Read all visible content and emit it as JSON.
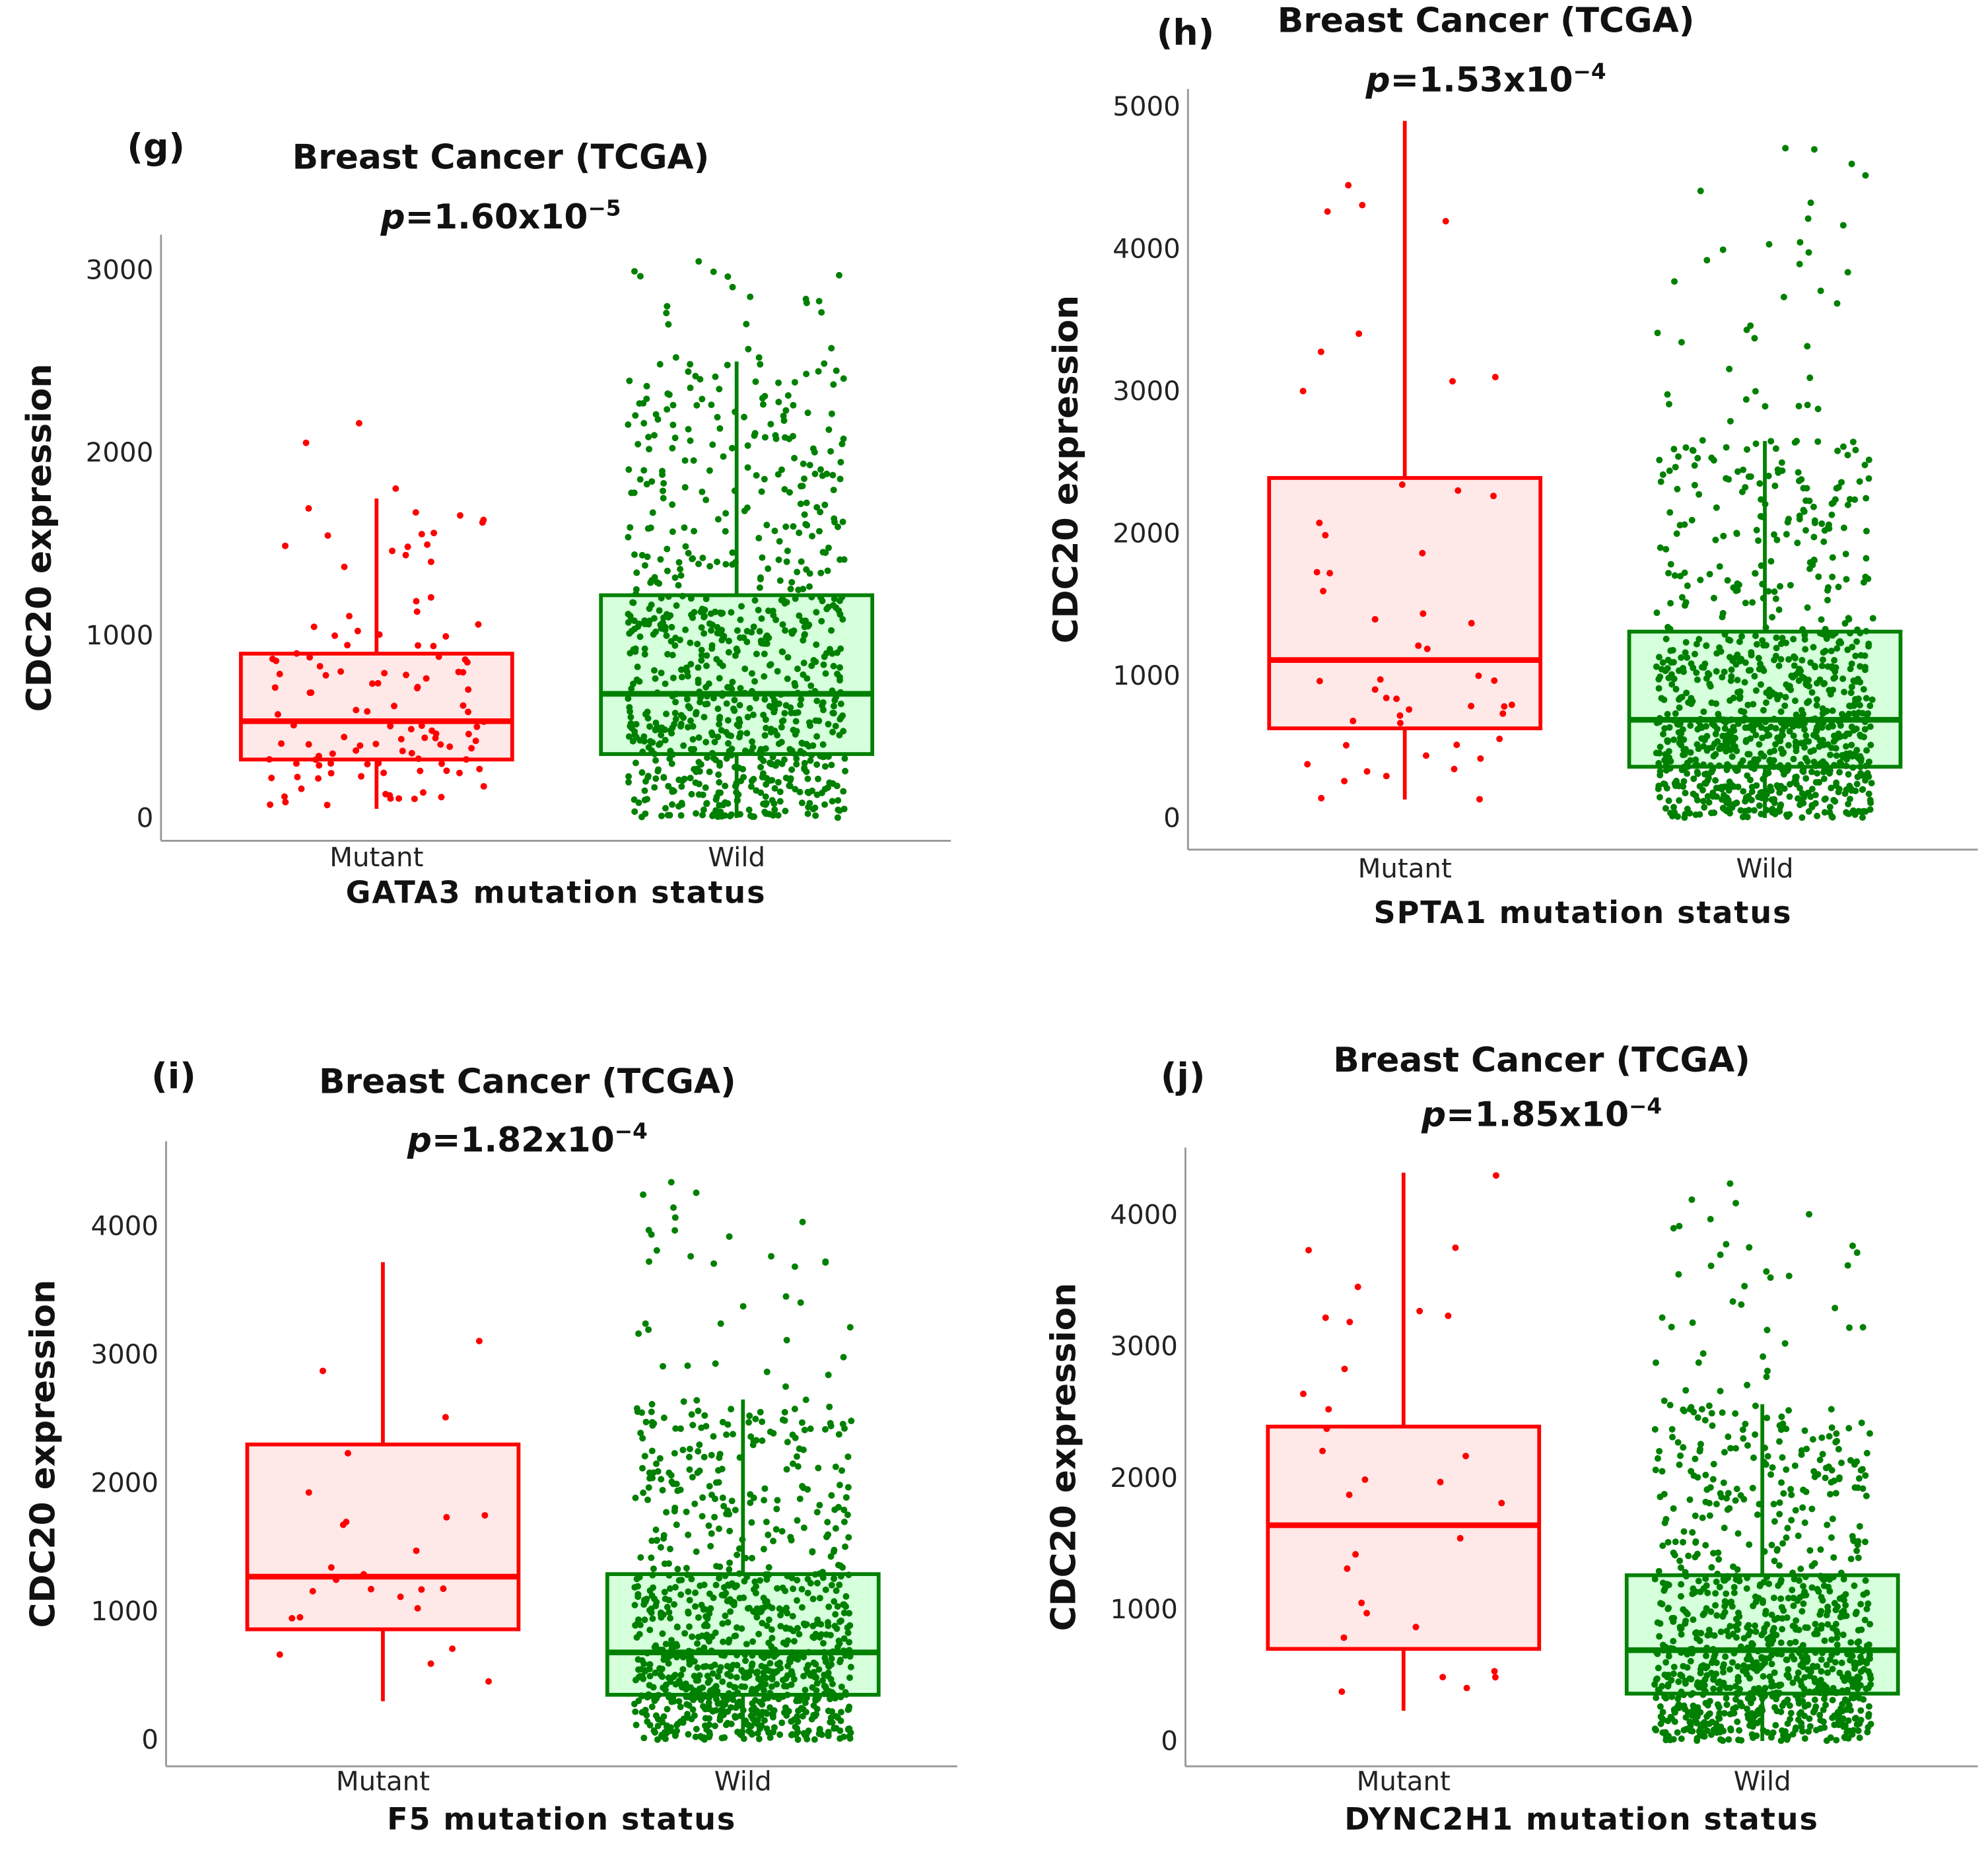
{
  "chart_data": [
    {
      "type": "box",
      "panel_label": "(g)",
      "title": "Breast Cancer (TCGA)",
      "p_prefix": "p",
      "p_value": "=1.60x10",
      "p_exponent": "−5",
      "xlabel": "GATA3 mutation status",
      "ylabel": "CDC20 expression",
      "categories": [
        "Mutant",
        "Wild"
      ],
      "yticks": [
        "0",
        "1000",
        "2000",
        "3000"
      ],
      "ylim": [
        0,
        3000
      ],
      "series": [
        {
          "name": "Mutant",
          "color": "#ff0000",
          "fill": "#ffe8e8",
          "n": 120,
          "min": 50,
          "q1": 320,
          "median": 530,
          "q3": 900,
          "max": 1750,
          "outlier_max": 2550
        },
        {
          "name": "Wild",
          "color": "#008000",
          "fill": "#d6ffdc",
          "n": 850,
          "min": 0,
          "q1": 350,
          "median": 680,
          "q3": 1220,
          "max": 2500,
          "outlier_max": 3050
        }
      ]
    },
    {
      "type": "box",
      "panel_label": "(h)",
      "title": "Breast Cancer (TCGA)",
      "p_prefix": "p",
      "p_value": "=1.53x10",
      "p_exponent": "−4",
      "xlabel": "SPTA1 mutation status",
      "ylabel": "CDC20 expression",
      "categories": [
        "Mutant",
        "Wild"
      ],
      "yticks": [
        "0",
        "1000",
        "2000",
        "3000",
        "4000",
        "5000"
      ],
      "ylim": [
        0,
        5000
      ],
      "series": [
        {
          "name": "Mutant",
          "color": "#ff0000",
          "fill": "#ffe8e8",
          "n": 50,
          "min": 130,
          "q1": 630,
          "median": 1110,
          "q3": 2390,
          "max": 4900,
          "outlier_max": 4900
        },
        {
          "name": "Wild",
          "color": "#008000",
          "fill": "#d6ffdc",
          "n": 1000,
          "min": 0,
          "q1": 360,
          "median": 690,
          "q3": 1310,
          "max": 2650,
          "outlier_max": 4750
        }
      ]
    },
    {
      "type": "box",
      "panel_label": "(i)",
      "title": "Breast Cancer (TCGA)",
      "p_prefix": "p",
      "p_value": "=1.82x10",
      "p_exponent": "−4",
      "xlabel": "F5 mutation status",
      "ylabel": "CDC20 expression",
      "categories": [
        "Mutant",
        "Wild"
      ],
      "yticks": [
        "0",
        "1000",
        "2000",
        "3000",
        "4000"
      ],
      "ylim": [
        0,
        4000
      ],
      "series": [
        {
          "name": "Mutant",
          "color": "#ff0000",
          "fill": "#ffe8e8",
          "n": 25,
          "min": 300,
          "q1": 860,
          "median": 1270,
          "q3": 2300,
          "max": 3720,
          "outlier_max": 3720
        },
        {
          "name": "Wild",
          "color": "#008000",
          "fill": "#d6ffdc",
          "n": 1000,
          "min": 0,
          "q1": 350,
          "median": 680,
          "q3": 1290,
          "max": 2650,
          "outlier_max": 4400
        }
      ]
    },
    {
      "type": "box",
      "panel_label": "(j)",
      "title": "Breast Cancer (TCGA)",
      "p_prefix": "p",
      "p_value": "=1.85x10",
      "p_exponent": "−4",
      "xlabel": "DYNC2H1 mutation status",
      "ylabel": "CDC20 expression",
      "categories": [
        "Mutant",
        "Wild"
      ],
      "yticks": [
        "0",
        "1000",
        "2000",
        "3000",
        "4000"
      ],
      "ylim": [
        0,
        4000
      ],
      "series": [
        {
          "name": "Mutant",
          "color": "#ff0000",
          "fill": "#ffe8e8",
          "n": 30,
          "min": 230,
          "q1": 700,
          "median": 1640,
          "q3": 2390,
          "max": 4320,
          "outlier_max": 4320
        },
        {
          "name": "Wild",
          "color": "#008000",
          "fill": "#d6ffdc",
          "n": 1000,
          "min": 0,
          "q1": 360,
          "median": 690,
          "q3": 1260,
          "max": 2560,
          "outlier_max": 4250
        }
      ]
    }
  ]
}
